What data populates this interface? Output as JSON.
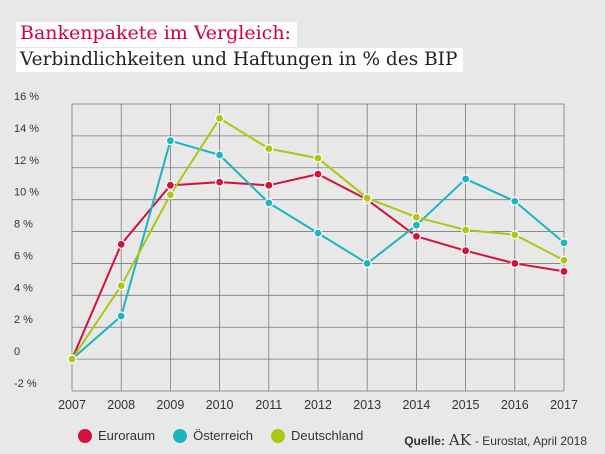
{
  "title": "Bankenpakete im Vergleich:",
  "subtitle": "Verbindlichkeiten und Haftungen in % des BIP",
  "source": {
    "label": "Quelle:",
    "brand": "AK",
    "text": "- Eurostat, April 2018"
  },
  "colors": {
    "Euroraum": "#d5103d",
    "Österreich": "#1bb5c0",
    "Deutschland": "#a8c814"
  },
  "chart_data": {
    "type": "line",
    "x": [
      2007,
      2008,
      2009,
      2010,
      2011,
      2012,
      2013,
      2014,
      2015,
      2016,
      2017
    ],
    "series": [
      {
        "name": "Euroraum",
        "values": [
          0,
          7.2,
          10.9,
          11.1,
          10.9,
          11.6,
          10.0,
          7.7,
          6.8,
          6.0,
          5.5
        ]
      },
      {
        "name": "Österreich",
        "values": [
          0,
          2.7,
          13.7,
          12.8,
          9.8,
          7.9,
          6.0,
          8.4,
          11.3,
          9.9,
          7.3
        ]
      },
      {
        "name": "Deutschland",
        "values": [
          0,
          4.6,
          10.3,
          15.1,
          13.2,
          12.6,
          10.1,
          8.9,
          8.1,
          7.8,
          6.2
        ]
      }
    ],
    "ylim": [
      -2,
      16
    ],
    "yticks": [
      -2,
      0,
      2,
      4,
      6,
      8,
      10,
      12,
      14,
      16
    ],
    "ytick_labels": [
      "-2 %",
      "0",
      "2 %",
      "4 %",
      "6 %",
      "8 %",
      "10 %",
      "12 %",
      "14 %",
      "16 %"
    ],
    "grid": true,
    "legend": "bottom-left"
  }
}
